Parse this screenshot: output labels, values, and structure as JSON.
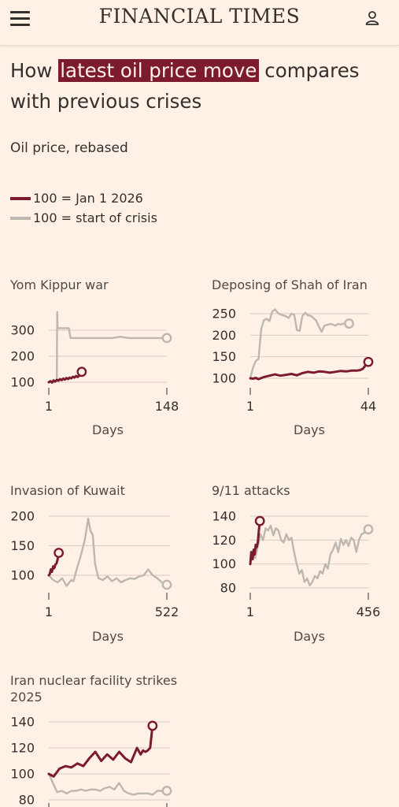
{
  "header": {
    "brand": "FINANCIAL TIMES"
  },
  "headline": {
    "before": "How ",
    "highlight": "latest oil price move",
    "after": " compares with previous crises"
  },
  "subtitle": "Oil price, rebased",
  "legend": [
    {
      "label": "100 = Jan 1 2026",
      "color": "#7d1b2e"
    },
    {
      "label": "100 = start of crisis",
      "color": "#bdb7b1"
    }
  ],
  "colors": {
    "current": "#7d1b2e",
    "crisis": "#bdb7b1",
    "grid": "#d8ccc3",
    "background": "#fff1e5"
  },
  "icons": {
    "menu": "hamburger-menu-icon",
    "user": "user-icon"
  },
  "chart_data": [
    {
      "type": "line",
      "title": "Yom Kippur war",
      "xlabel": "Days",
      "x_ticks": [
        "1",
        "148"
      ],
      "xlim": [
        1,
        148
      ],
      "y_ticks": [
        100,
        200,
        300
      ],
      "ylim": [
        100,
        300
      ],
      "series": [
        {
          "key": "crisis",
          "x": [
            1,
            8,
            10,
            11,
            11.5,
            12,
            13,
            20,
            26,
            28,
            40,
            60,
            80,
            90,
            100,
            120,
            140,
            148
          ],
          "values": [
            100,
            100,
            103,
            105,
            370,
            308,
            308,
            308,
            308,
            270,
            270,
            270,
            270,
            275,
            270,
            270,
            270,
            270
          ]
        },
        {
          "key": "current",
          "x": [
            1,
            3,
            5,
            7,
            9,
            11,
            13,
            15,
            17,
            19,
            21,
            23,
            25,
            27,
            29,
            31,
            33,
            35,
            37,
            39,
            41,
            42
          ],
          "values": [
            100,
            104,
            99,
            107,
            103,
            109,
            106,
            112,
            108,
            114,
            110,
            116,
            112,
            118,
            115,
            121,
            118,
            124,
            120,
            126,
            128,
            140
          ]
        }
      ]
    },
    {
      "type": "line",
      "title": "Deposing of Shah of Iran",
      "xlabel": "Days",
      "x_ticks": [
        "1",
        "44"
      ],
      "xlim": [
        1,
        44
      ],
      "y_ticks": [
        100,
        150,
        200,
        250
      ],
      "ylim": [
        100,
        250
      ],
      "series": [
        {
          "key": "crisis",
          "x": [
            1,
            2,
            3,
            4,
            5,
            6,
            7,
            8,
            9,
            10,
            11,
            12,
            13,
            14,
            15,
            16,
            17,
            18,
            19,
            20,
            21,
            22,
            23,
            24,
            25,
            26,
            27,
            28,
            29,
            30,
            31,
            32,
            33,
            34,
            35,
            36,
            37
          ],
          "values": [
            100,
            125,
            140,
            145,
            215,
            235,
            238,
            233,
            255,
            260,
            252,
            248,
            246,
            244,
            240,
            250,
            248,
            212,
            210,
            245,
            252,
            246,
            245,
            240,
            234,
            220,
            208,
            222,
            224,
            226,
            225,
            222,
            226,
            225,
            227,
            228,
            227
          ]
        },
        {
          "key": "current",
          "x": [
            1,
            2,
            3,
            4,
            6,
            8,
            10,
            12,
            14,
            16,
            18,
            20,
            22,
            24,
            26,
            28,
            30,
            32,
            34,
            36,
            38,
            40,
            41,
            42,
            43,
            44
          ],
          "values": [
            100,
            99,
            101,
            98,
            103,
            106,
            109,
            106,
            108,
            110,
            107,
            112,
            115,
            113,
            116,
            115,
            113,
            115,
            117,
            116,
            118,
            118,
            119,
            122,
            130,
            138
          ]
        }
      ]
    },
    {
      "type": "line",
      "title": "Invasion of Kuwait",
      "xlabel": "Days",
      "x_ticks": [
        "1",
        "522"
      ],
      "xlim": [
        1,
        522
      ],
      "y_ticks": [
        100,
        150,
        200
      ],
      "ylim": [
        100,
        200
      ],
      "series": [
        {
          "key": "crisis",
          "x": [
            1,
            20,
            40,
            60,
            80,
            100,
            110,
            120,
            140,
            160,
            175,
            185,
            195,
            205,
            220,
            240,
            260,
            280,
            300,
            320,
            340,
            360,
            380,
            400,
            420,
            440,
            460,
            480,
            500,
            522
          ],
          "values": [
            100,
            92,
            88,
            95,
            82,
            92,
            90,
            105,
            130,
            160,
            196,
            175,
            168,
            120,
            95,
            92,
            98,
            90,
            95,
            88,
            92,
            95,
            94,
            98,
            100,
            110,
            100,
            95,
            88,
            84
          ]
        },
        {
          "key": "current",
          "x": [
            1,
            5,
            10,
            15,
            20,
            25,
            30,
            35,
            40,
            45
          ],
          "values": [
            100,
            102,
            110,
            106,
            115,
            112,
            118,
            120,
            127,
            138
          ]
        }
      ]
    },
    {
      "type": "line",
      "title": "9/11 attacks",
      "xlabel": "Days",
      "x_ticks": [
        "1",
        "456"
      ],
      "xlim": [
        1,
        456
      ],
      "y_ticks": [
        80,
        100,
        120,
        140
      ],
      "ylim": [
        80,
        140
      ],
      "series": [
        {
          "key": "crisis",
          "x": [
            1,
            10,
            20,
            30,
            40,
            50,
            60,
            70,
            80,
            90,
            100,
            110,
            120,
            130,
            140,
            150,
            160,
            170,
            180,
            190,
            200,
            210,
            220,
            230,
            240,
            250,
            260,
            270,
            280,
            290,
            300,
            310,
            320,
            330,
            340,
            350,
            360,
            370,
            380,
            390,
            400,
            410,
            420,
            430,
            440,
            456
          ],
          "values": [
            100,
            110,
            105,
            115,
            125,
            120,
            130,
            128,
            132,
            124,
            130,
            128,
            120,
            118,
            125,
            120,
            122,
            110,
            100,
            92,
            95,
            85,
            88,
            82,
            85,
            90,
            88,
            94,
            92,
            100,
            96,
            108,
            112,
            118,
            110,
            121,
            116,
            120,
            115,
            122,
            120,
            110,
            120,
            125,
            126,
            129
          ]
        },
        {
          "key": "current",
          "x": [
            1,
            5,
            10,
            14,
            18,
            22,
            26,
            30,
            34,
            38
          ],
          "values": [
            100,
            110,
            104,
            112,
            108,
            116,
            114,
            118,
            128,
            136
          ]
        }
      ]
    },
    {
      "type": "line",
      "title": "Iran nuclear facility strikes 2025",
      "xlabel": "",
      "x_ticks": [],
      "xlim": [
        1,
        100
      ],
      "y_ticks": [
        80,
        100,
        120,
        140
      ],
      "ylim": [
        80,
        140
      ],
      "series": [
        {
          "key": "crisis",
          "x": [
            1,
            4,
            8,
            12,
            16,
            20,
            24,
            28,
            32,
            36,
            40,
            44,
            48,
            52,
            56,
            60,
            64,
            68,
            72,
            76,
            80,
            84,
            88,
            92,
            96,
            100
          ],
          "values": [
            100,
            94,
            86,
            87,
            85,
            87,
            87,
            88,
            87,
            88,
            88,
            87,
            89,
            90,
            88,
            93,
            87,
            85,
            84,
            85,
            85,
            85,
            84,
            87,
            87,
            87
          ]
        },
        {
          "key": "current",
          "x": [
            1,
            5,
            10,
            15,
            20,
            25,
            30,
            35,
            40,
            45,
            50,
            55,
            60,
            65,
            70,
            75,
            78,
            80,
            82,
            84,
            86,
            88
          ],
          "values": [
            100,
            98,
            104,
            106,
            105,
            108,
            106,
            112,
            117,
            110,
            115,
            111,
            117,
            112,
            109,
            120,
            115,
            118,
            117,
            118,
            120,
            137
          ]
        }
      ]
    }
  ]
}
